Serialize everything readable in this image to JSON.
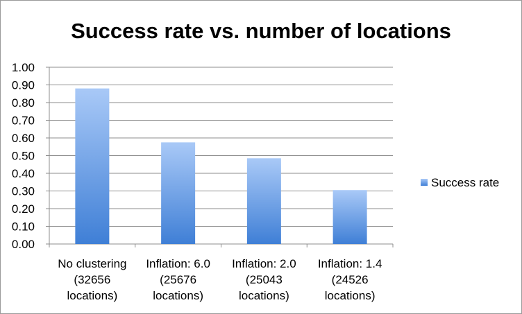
{
  "chart_data": {
    "type": "bar",
    "title": "Success rate vs. number of locations",
    "categories": [
      [
        "No clustering",
        "(32656",
        "locations)"
      ],
      [
        "Inflation: 6.0",
        "(25676",
        "locations)"
      ],
      [
        "Inflation: 2.0",
        "(25043",
        "locations)"
      ],
      [
        "Inflation: 1.4",
        "(24526",
        "locations)"
      ]
    ],
    "series": [
      {
        "name": "Success rate",
        "values": [
          0.88,
          0.575,
          0.485,
          0.305
        ]
      }
    ],
    "ylim": [
      0,
      1.0
    ],
    "yticks": [
      "0.00",
      "0.10",
      "0.20",
      "0.30",
      "0.40",
      "0.50",
      "0.60",
      "0.70",
      "0.80",
      "0.90",
      "1.00"
    ],
    "xlabel": "",
    "ylabel": "",
    "grid": true,
    "legend_position": "right",
    "colors": {
      "bar_top": "#a9c9f7",
      "bar_bottom": "#3f7fd6",
      "gridline": "#8c8c8c"
    }
  }
}
